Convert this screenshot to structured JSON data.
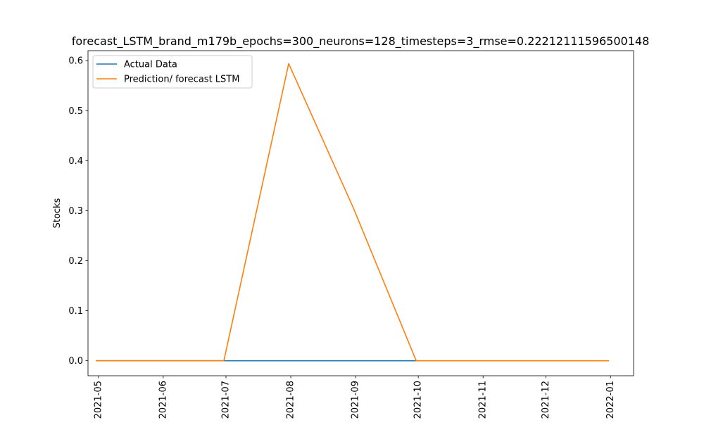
{
  "chart_data": {
    "type": "line",
    "title": "forecast_LSTM_brand_m179b_epochs=300_neurons=128_timesteps=3_rmse=0.22212111596500148",
    "xlabel": "",
    "ylabel": "Stocks",
    "x_ticks": [
      "2021-05",
      "2021-06",
      "2021-07",
      "2021-08",
      "2021-09",
      "2021-10",
      "2021-11",
      "2021-12",
      "2022-01"
    ],
    "y_ticks": [
      "0.0",
      "0.1",
      "0.2",
      "0.3",
      "0.4",
      "0.5",
      "0.6"
    ],
    "xlim": [
      "2021-04-26",
      "2022-01-12"
    ],
    "ylim": [
      -0.03,
      0.62
    ],
    "grid": false,
    "legend_position": "top-left",
    "series": [
      {
        "name": "Actual Data",
        "color": "#1f77b4",
        "x": [
          "2021-04-30",
          "2021-05-31",
          "2021-06-30",
          "2021-07-31",
          "2021-08-31",
          "2021-09-30"
        ],
        "values": [
          0.0,
          0.0,
          0.0,
          0.0,
          0.0,
          0.0
        ]
      },
      {
        "name": "Prediction/ forecast LSTM",
        "color": "#ff7f0e",
        "x": [
          "2021-04-30",
          "2021-05-31",
          "2021-06-30",
          "2021-07-31",
          "2021-08-31",
          "2021-09-30",
          "2021-10-31",
          "2021-11-30",
          "2021-12-31"
        ],
        "values": [
          0.0,
          0.0,
          0.0,
          0.594,
          0.305,
          0.0,
          0.0,
          0.0,
          0.0
        ]
      }
    ]
  }
}
